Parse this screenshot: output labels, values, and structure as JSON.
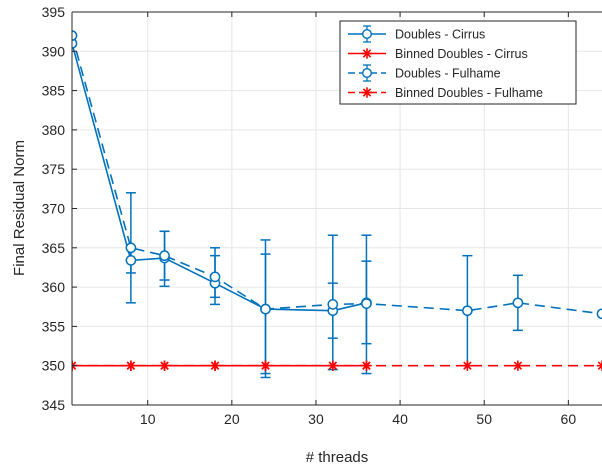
{
  "chart_data": {
    "type": "line",
    "title": "",
    "xlabel": "# threads",
    "ylabel": "Final Residual Norm",
    "xlim": [
      1,
      64
    ],
    "ylim": [
      345,
      395
    ],
    "xticks": [
      10,
      20,
      30,
      40,
      50,
      60
    ],
    "yticks": [
      345,
      350,
      355,
      360,
      365,
      370,
      375,
      380,
      385,
      390,
      395
    ],
    "grid": true,
    "legend_position": "top-right",
    "series": [
      {
        "name": "Doubles - Cirrus",
        "color": "#0072BD",
        "line_style": "solid",
        "marker": "circle",
        "x": [
          1,
          8,
          12,
          18,
          24,
          32,
          36
        ],
        "y": [
          391,
          363.4,
          363.7,
          360.5,
          357.2,
          357.0,
          358.0
        ],
        "err_low": [
          391,
          358.0,
          360.1,
          357.8,
          348.5,
          349.5,
          352.8
        ],
        "err_high": [
          391,
          372.0,
          367.1,
          365.0,
          366.0,
          366.6,
          366.6
        ]
      },
      {
        "name": "Binned Doubles - Cirrus",
        "color": "#FF0000",
        "line_style": "solid",
        "marker": "asterisk",
        "x": [
          1,
          8,
          12,
          18,
          24,
          32,
          36
        ],
        "y": [
          350,
          350,
          350,
          350,
          350,
          350,
          350
        ]
      },
      {
        "name": "Doubles - Fulhame",
        "color": "#0072BD",
        "line_style": "dashed",
        "marker": "circle",
        "x": [
          1,
          8,
          12,
          18,
          24,
          32,
          36,
          48,
          54,
          64
        ],
        "y": [
          392,
          365.0,
          364.0,
          361.3,
          357.2,
          357.8,
          357.9,
          357.0,
          358.0,
          356.6
        ],
        "err_low": [
          392,
          361.8,
          360.9,
          358.7,
          349.0,
          353.5,
          349.0,
          350.0,
          354.5,
          356.6
        ],
        "err_high": [
          392,
          365.0,
          367.1,
          364.0,
          364.2,
          360.5,
          363.3,
          364.0,
          361.5,
          356.6
        ]
      },
      {
        "name": "Binned Doubles - Fulhame",
        "color": "#FF0000",
        "line_style": "dashed",
        "marker": "asterisk",
        "x": [
          1,
          8,
          12,
          18,
          24,
          32,
          36,
          48,
          54,
          64
        ],
        "y": [
          350,
          350,
          350,
          350,
          350,
          350,
          350,
          350,
          350,
          350
        ]
      }
    ]
  }
}
